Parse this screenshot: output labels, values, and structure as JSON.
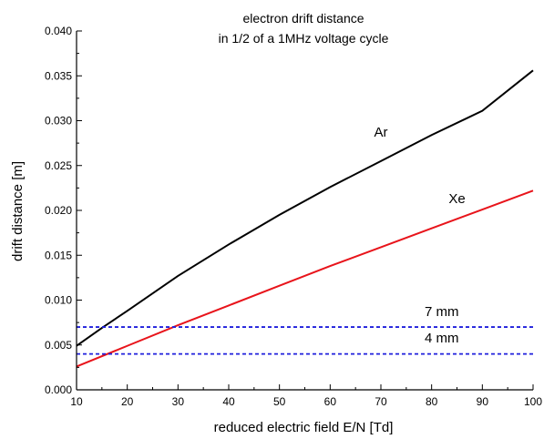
{
  "chart_data": {
    "type": "line",
    "title": [
      "electron drift distance",
      "in 1/2 of a 1MHz voltage cycle"
    ],
    "xlabel": "reduced electric field E/N [Td]",
    "ylabel": "drift distance [m]",
    "xlim": [
      10,
      100
    ],
    "ylim": [
      0,
      0.04
    ],
    "xticks": [
      "10",
      "20",
      "30",
      "40",
      "50",
      "60",
      "70",
      "80",
      "90",
      "100"
    ],
    "yticks": [
      "0.000",
      "0.005",
      "0.010",
      "0.015",
      "0.020",
      "0.025",
      "0.030",
      "0.035",
      "0.040"
    ],
    "grid": false,
    "series": [
      {
        "name": "Ar",
        "color": "#000000",
        "style": "solid",
        "x": [
          10,
          15,
          20,
          30,
          40,
          50,
          60,
          70,
          80,
          90,
          100
        ],
        "y": [
          0.0049,
          0.0069,
          0.0088,
          0.0127,
          0.0162,
          0.0195,
          0.0226,
          0.0255,
          0.0284,
          0.0311,
          0.0356
        ]
      },
      {
        "name": "Xe",
        "color": "#e8141b",
        "style": "solid",
        "x": [
          10,
          20,
          30,
          40,
          50,
          60,
          70,
          80,
          90,
          100
        ],
        "y": [
          0.0026,
          0.0049,
          0.0072,
          0.0094,
          0.0116,
          0.0138,
          0.0159,
          0.018,
          0.0201,
          0.0222
        ]
      },
      {
        "name": "7 mm",
        "color": "#1f1fdc",
        "style": "dashed",
        "x": [
          10,
          100
        ],
        "y": [
          0.007,
          0.007
        ]
      },
      {
        "name": "4 mm",
        "color": "#1f1fdc",
        "style": "dashed",
        "x": [
          10,
          100
        ],
        "y": [
          0.004,
          0.004
        ]
      }
    ],
    "annotations": [
      {
        "text": "Ar",
        "x": 70,
        "y": 0.0282
      },
      {
        "text": "Xe",
        "x": 85,
        "y": 0.0208
      },
      {
        "text": "7 mm",
        "x": 82,
        "y": 0.0082
      },
      {
        "text": "4 mm",
        "x": 82,
        "y": 0.0053
      }
    ]
  }
}
